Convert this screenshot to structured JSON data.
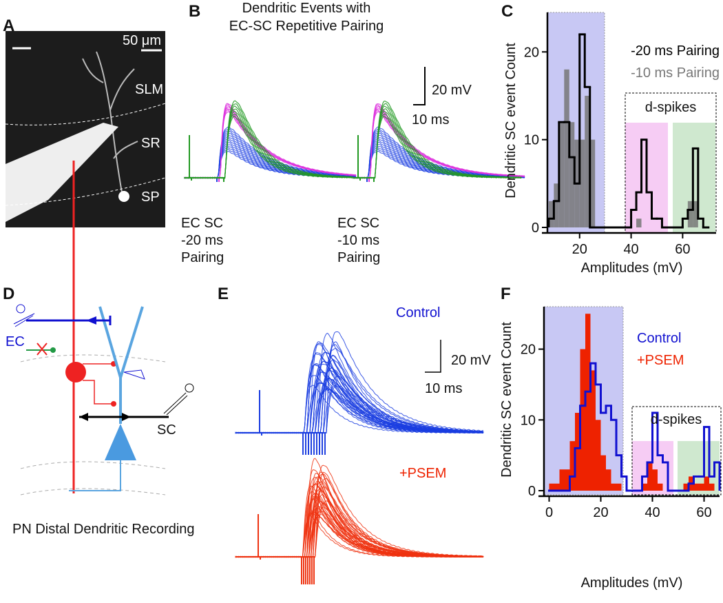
{
  "panels": {
    "a": {
      "letter": "A",
      "scale": "50 μm",
      "layers": [
        "SLM",
        "SR",
        "SP"
      ]
    },
    "b": {
      "letter": "B",
      "title": [
        "Dendritic Events with",
        "EC-SC Repetitive Pairing"
      ],
      "scale_amplitude": "20 mV",
      "scale_time": "10 ms",
      "conditions": [
        [
          "EC SC",
          "-20 ms",
          "Pairing"
        ],
        [
          "EC SC",
          "-10 ms",
          "Pairing"
        ]
      ]
    },
    "d": {
      "letter": "D",
      "inputs": [
        "EC",
        "SC"
      ],
      "caption": "PN Distal Dendritic Recording"
    },
    "e": {
      "letter": "E",
      "scale_amplitude": "20 mV",
      "scale_time": "10 ms",
      "conditions": [
        "Control",
        "+PSEM"
      ]
    }
  },
  "chart_data": [
    {
      "type": "histogram",
      "label": "C",
      "xlabel": "Amplitudes (mV)",
      "ylabel": "Dendritic SC event Count",
      "annotation": "d-spikes",
      "bins": [
        8,
        10,
        12,
        14,
        16,
        18,
        20,
        22,
        24,
        26,
        28,
        30,
        32,
        34,
        36,
        38,
        40,
        42,
        44,
        46,
        48,
        50,
        52,
        54,
        56,
        58,
        60,
        62,
        64,
        66,
        68,
        70
      ],
      "series": [
        {
          "name": "-20 ms Pairing",
          "color": "#000000",
          "style": "step",
          "values": [
            1,
            3,
            12,
            12,
            8,
            5,
            22,
            16,
            0,
            0,
            0,
            0,
            0,
            0,
            0,
            0,
            2,
            4,
            10,
            4,
            1,
            1,
            0,
            0,
            0,
            0,
            1,
            2,
            9,
            1,
            0
          ]
        },
        {
          "name": "-10 ms Pairing",
          "color": "#777777",
          "style": "bar",
          "values": [
            3,
            5,
            12,
            18,
            12,
            10,
            10,
            15,
            10,
            0,
            0,
            0,
            0,
            0,
            0,
            0,
            0,
            1,
            0,
            0,
            0,
            0,
            0,
            0,
            0,
            0,
            0,
            3,
            3,
            0,
            0
          ]
        }
      ],
      "xlim": [
        7.5,
        73
      ],
      "ylim": [
        0,
        24.5
      ],
      "xticks": [
        20,
        40,
        60
      ],
      "yticks": [
        0,
        10,
        20
      ]
    },
    {
      "type": "histogram",
      "label": "F",
      "xlabel": "Amplitudes (mV)",
      "ylabel": "Dendritic SC event Count",
      "annotation": "d-spikes",
      "bins": [
        0,
        2,
        4,
        6,
        8,
        10,
        12,
        14,
        16,
        18,
        20,
        22,
        24,
        26,
        28,
        30,
        32,
        34,
        36,
        38,
        40,
        42,
        44,
        46,
        48,
        50,
        52,
        54,
        56,
        58,
        60,
        62,
        64,
        66
      ],
      "series": [
        {
          "name": "Control",
          "color": "#1010d0",
          "style": "step",
          "values": [
            0,
            0,
            0,
            0,
            2,
            6,
            12,
            14,
            18,
            15,
            11,
            12,
            10,
            5,
            2,
            0,
            0,
            0,
            2,
            4,
            11,
            5,
            4,
            0,
            0,
            0,
            0,
            1,
            2,
            2,
            9,
            2,
            4
          ]
        },
        {
          "name": "+PSEM",
          "color": "#ee2200",
          "style": "bar",
          "values": [
            1,
            1,
            3,
            3,
            7,
            11,
            20,
            25,
            17,
            10,
            5,
            3,
            1,
            1,
            0,
            0,
            0,
            0,
            1,
            4,
            3,
            1,
            0,
            0,
            0,
            0,
            1,
            2,
            1,
            1,
            2,
            1,
            0
          ]
        }
      ],
      "xlim": [
        -2,
        66
      ],
      "ylim": [
        0,
        26
      ],
      "xticks": [
        0,
        20,
        40,
        60
      ],
      "yticks": [
        0,
        10,
        20
      ]
    }
  ]
}
